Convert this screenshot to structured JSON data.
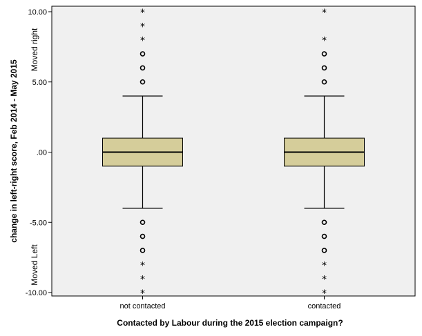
{
  "chart_data": {
    "type": "boxplot",
    "xlabel": "Contacted by Labour during the 2015 election campaign?",
    "ylabel": "change in left-right score, Feb 2014 - May 2015",
    "ylim": [
      -10,
      10
    ],
    "yticks": [
      10,
      5,
      0,
      -5,
      -10
    ],
    "ytick_labels": [
      "10.00",
      "5.00",
      ".00",
      "-5.00",
      "-10.00"
    ],
    "annotations": {
      "top": "Moved right",
      "bottom": "Moved Left"
    },
    "categories": [
      "not contacted",
      "contacted"
    ],
    "box_fill": "#d5cd9a",
    "plot_bg": "#f0f0f0",
    "boxes": [
      {
        "category": "not contacted",
        "whisker_low": -4,
        "q1": -1,
        "median": 0,
        "q3": 1,
        "whisker_high": 4,
        "outliers": [
          5,
          6,
          7,
          -5,
          -6,
          -7
        ],
        "extremes": [
          8,
          9,
          10,
          -8,
          -9,
          -10
        ]
      },
      {
        "category": "contacted",
        "whisker_low": -4,
        "q1": -1,
        "median": 0,
        "q3": 1,
        "whisker_high": 4,
        "outliers": [
          5,
          6,
          7,
          -5,
          -6,
          -7
        ],
        "extremes": [
          8,
          10,
          -8,
          -9,
          -10
        ]
      }
    ]
  }
}
